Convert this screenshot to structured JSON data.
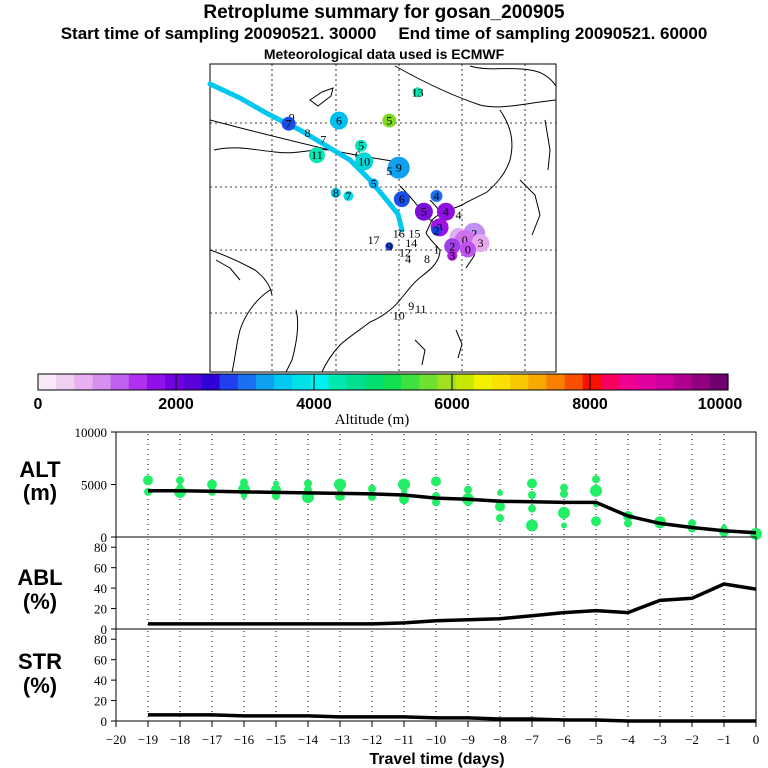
{
  "header": {
    "title": "Retroplume summary for gosan_200905",
    "start_label": "Start time of sampling 20090521. 30000",
    "end_label": "End time of sampling 20090521. 60000",
    "met_label": "Meteorological data used is ECMWF"
  },
  "colors": {
    "trajectory": "#00c8f0",
    "plume_green": "#22ee66",
    "line": "#000000"
  },
  "map": {
    "markers": [
      {
        "label": "9",
        "lon": 73.0,
        "lat": 55.5,
        "size": 0,
        "color": "none"
      },
      {
        "label": "7",
        "lon": 72.5,
        "lat": 54.5,
        "size": 7,
        "color": "#1a4de8"
      },
      {
        "label": "8",
        "lon": 75.5,
        "lat": 53.0,
        "size": 0,
        "color": "none"
      },
      {
        "label": "7",
        "lon": 78.0,
        "lat": 52.0,
        "size": 0,
        "color": "none"
      },
      {
        "label": "6",
        "lon": 80.5,
        "lat": 55.0,
        "size": 9,
        "color": "#00c0f0"
      },
      {
        "label": "5",
        "lon": 88.5,
        "lat": 55.0,
        "size": 7,
        "color": "#80d820"
      },
      {
        "label": "5",
        "lon": 84.0,
        "lat": 51.0,
        "size": 6,
        "color": "#00e8c0"
      },
      {
        "label": "11",
        "lon": 77.0,
        "lat": 49.5,
        "size": 8,
        "color": "#00e8b0"
      },
      {
        "label": "6",
        "lon": 83.5,
        "lat": 49.5,
        "size": 0,
        "color": "none"
      },
      {
        "label": "10",
        "lon": 84.5,
        "lat": 48.5,
        "size": 9,
        "color": "#00d8d8"
      },
      {
        "label": "9",
        "lon": 90.0,
        "lat": 47.5,
        "size": 11,
        "color": "#10a0f0"
      },
      {
        "label": "5",
        "lon": 88.5,
        "lat": 47.0,
        "size": 0,
        "color": "none"
      },
      {
        "label": "5",
        "lon": 86.0,
        "lat": 45.0,
        "size": 5,
        "color": "#00b0f0"
      },
      {
        "label": "4",
        "lon": 96.0,
        "lat": 43.0,
        "size": 6,
        "color": "#1a70f0"
      },
      {
        "label": "8",
        "lon": 80.0,
        "lat": 43.5,
        "size": 5,
        "color": "#00c8f0"
      },
      {
        "label": "7",
        "lon": 82.0,
        "lat": 43.0,
        "size": 5,
        "color": "#00d8e8"
      },
      {
        "label": "6",
        "lon": 90.5,
        "lat": 42.5,
        "size": 8,
        "color": "#1a50e8"
      },
      {
        "label": "5",
        "lon": 94.0,
        "lat": 40.5,
        "size": 9,
        "color": "#7a10d8"
      },
      {
        "label": "4",
        "lon": 97.5,
        "lat": 40.5,
        "size": 9,
        "color": "#9010e0"
      },
      {
        "label": "4",
        "lon": 99.5,
        "lat": 40.0,
        "size": 0,
        "color": "none"
      },
      {
        "label": "3",
        "lon": 96.5,
        "lat": 38.0,
        "size": 9,
        "color": "#a010e8"
      },
      {
        "label": "2",
        "lon": 96.0,
        "lat": 37.5,
        "size": 5,
        "color": "#1a40e8"
      },
      {
        "label": "1",
        "lon": 99.5,
        "lat": 36.5,
        "size": 9,
        "color": "#e0b0f0"
      },
      {
        "label": "2",
        "lon": 102.0,
        "lat": 37.0,
        "size": 11,
        "color": "#c090f0"
      },
      {
        "label": "0",
        "lon": 100.5,
        "lat": 36.0,
        "size": 10,
        "color": "#d070f0"
      },
      {
        "label": "3",
        "lon": 103.0,
        "lat": 35.5,
        "size": 9,
        "color": "#e8a8f0"
      },
      {
        "label": "2",
        "lon": 98.5,
        "lat": 35.0,
        "size": 8,
        "color": "#a040e8"
      },
      {
        "label": "0",
        "lon": 101.0,
        "lat": 34.5,
        "size": 8,
        "color": "#c050f0"
      },
      {
        "label": "1",
        "lon": 96.0,
        "lat": 34.5,
        "size": 0,
        "color": "none"
      },
      {
        "label": "3",
        "lon": 98.5,
        "lat": 33.5,
        "size": 5,
        "color": "#b020e0"
      },
      {
        "label": "17",
        "lon": 86.0,
        "lat": 36.0,
        "size": 0,
        "color": "none"
      },
      {
        "label": "16",
        "lon": 90.0,
        "lat": 37.0,
        "size": 0,
        "color": "none"
      },
      {
        "label": "15",
        "lon": 92.5,
        "lat": 37.0,
        "size": 0,
        "color": "none"
      },
      {
        "label": "9",
        "lon": 88.5,
        "lat": 35.0,
        "size": 4,
        "color": "#1a40e8"
      },
      {
        "label": "14",
        "lon": 92.0,
        "lat": 35.5,
        "size": 0,
        "color": "none"
      },
      {
        "label": "12",
        "lon": 91.0,
        "lat": 34.0,
        "size": 0,
        "color": "none"
      },
      {
        "label": "4",
        "lon": 91.5,
        "lat": 33.0,
        "size": 0,
        "color": "none"
      },
      {
        "label": "8",
        "lon": 94.5,
        "lat": 33.0,
        "size": 0,
        "color": "none"
      },
      {
        "label": "9",
        "lon": 92.0,
        "lat": 25.5,
        "size": 0,
        "color": "none"
      },
      {
        "label": "11",
        "lon": 93.5,
        "lat": 25.0,
        "size": 0,
        "color": "none"
      },
      {
        "label": "10",
        "lon": 90.0,
        "lat": 24.0,
        "size": 0,
        "color": "none"
      },
      {
        "label": "13",
        "lon": 93.0,
        "lat": 59.5,
        "size": 5,
        "color": "#00e8b0"
      }
    ]
  },
  "colorbar": {
    "stops": [
      "#f8e8f8",
      "#f0d0f0",
      "#e8b0f0",
      "#d890f0",
      "#c060f0",
      "#b030f0",
      "#9010e8",
      "#7000e0",
      "#5a00d8",
      "#3000d8",
      "#2040f0",
      "#1a70f0",
      "#10a0f0",
      "#00c8f0",
      "#00e0e8",
      "#00f0f0",
      "#00e8b0",
      "#00e090",
      "#00e070",
      "#10e050",
      "#40e040",
      "#70e030",
      "#a0e020",
      "#c8e800",
      "#f0f000",
      "#f8e000",
      "#f8c800",
      "#f8a800",
      "#f88000",
      "#f85000",
      "#f81000",
      "#f80060",
      "#f00090",
      "#e000a0",
      "#d000a0",
      "#b00090",
      "#900080",
      "#700070"
    ],
    "tick_labels": [
      "0",
      "2000",
      "4000",
      "6000",
      "8000",
      "10000"
    ],
    "label": "Altitude (m)"
  },
  "chart_data": [
    {
      "type": "line",
      "panel": "ALT",
      "ylabel_line1": "ALT",
      "ylabel_line2": "(m)",
      "ylim": [
        0,
        10000
      ],
      "yticks": [
        "0",
        "5000",
        "10000"
      ],
      "x": [
        -19,
        -18,
        -17,
        -16,
        -15,
        -14,
        -13,
        -12,
        -11,
        -10,
        -9,
        -8,
        -7,
        -6,
        -5,
        -4,
        -3,
        -2,
        -1,
        0
      ],
      "values": [
        4400,
        4400,
        4350,
        4300,
        4250,
        4200,
        4150,
        4100,
        4000,
        3700,
        3600,
        3400,
        3350,
        3300,
        3300,
        2000,
        1300,
        900,
        600,
        400
      ],
      "scatter": [
        [
          -19,
          4300
        ],
        [
          -19,
          5400
        ],
        [
          -18,
          4800
        ],
        [
          -18,
          4300
        ],
        [
          -18,
          5400
        ],
        [
          -17,
          4300
        ],
        [
          -17,
          5000
        ],
        [
          -16,
          3900
        ],
        [
          -16,
          4500
        ],
        [
          -16,
          5200
        ],
        [
          -15,
          3900
        ],
        [
          -15,
          4500
        ],
        [
          -15,
          5100
        ],
        [
          -14,
          3800
        ],
        [
          -14,
          4500
        ],
        [
          -14,
          5100
        ],
        [
          -13,
          3900
        ],
        [
          -13,
          4500
        ],
        [
          -13,
          5000
        ],
        [
          -12,
          3800
        ],
        [
          -12,
          4600
        ],
        [
          -11,
          3600
        ],
        [
          -11,
          4300
        ],
        [
          -11,
          5000
        ],
        [
          -10,
          3300
        ],
        [
          -10,
          3900
        ],
        [
          -10,
          5300
        ],
        [
          -9,
          3200
        ],
        [
          -9,
          3600
        ],
        [
          -9,
          4500
        ],
        [
          -8,
          1800
        ],
        [
          -8,
          2900
        ],
        [
          -8,
          4200
        ],
        [
          -7,
          1100
        ],
        [
          -7,
          2700
        ],
        [
          -7,
          4000
        ],
        [
          -7,
          5100
        ],
        [
          -6,
          1100
        ],
        [
          -6,
          2300
        ],
        [
          -6,
          4100
        ],
        [
          -6,
          4700
        ],
        [
          -5,
          1500
        ],
        [
          -5,
          3100
        ],
        [
          -5,
          4400
        ],
        [
          -5,
          5500
        ],
        [
          -4,
          1300
        ],
        [
          -4,
          2000
        ],
        [
          -3,
          1100
        ],
        [
          -3,
          1400
        ],
        [
          -2,
          800
        ],
        [
          -2,
          1300
        ],
        [
          -1,
          500
        ],
        [
          -1,
          900
        ],
        [
          0,
          300
        ]
      ]
    },
    {
      "type": "line",
      "panel": "ABL",
      "ylabel_line1": "ABL",
      "ylabel_line2": "(%)",
      "ylim": [
        0,
        90
      ],
      "yticks": [
        "0",
        "20",
        "40",
        "60",
        "80"
      ],
      "x": [
        -19,
        -18,
        -17,
        -16,
        -15,
        -14,
        -13,
        -12,
        -11,
        -10,
        -9,
        -8,
        -7,
        -6,
        -5,
        -4,
        -3,
        -2,
        -1,
        0
      ],
      "values": [
        5,
        5,
        5,
        5,
        5,
        5,
        5,
        5,
        6,
        8,
        9,
        10,
        13,
        16,
        18,
        16,
        28,
        30,
        44,
        39
      ]
    },
    {
      "type": "line",
      "panel": "STR",
      "ylabel_line1": "STR",
      "ylabel_line2": "(%)",
      "ylim": [
        0,
        90
      ],
      "yticks": [
        "0",
        "20",
        "40",
        "60",
        "80"
      ],
      "x": [
        -19,
        -18,
        -17,
        -16,
        -15,
        -14,
        -13,
        -12,
        -11,
        -10,
        -9,
        -8,
        -7,
        -6,
        -5,
        -4,
        -3,
        -2,
        -1,
        0
      ],
      "values": [
        6,
        6,
        6,
        5,
        5,
        5,
        4,
        4,
        4,
        3,
        3,
        2,
        2,
        1,
        1,
        0,
        0,
        0,
        0,
        0
      ],
      "xlabel": "Travel time (days)",
      "xticks": [
        "−20",
        "−19",
        "−18",
        "−17",
        "−16",
        "−15",
        "−14",
        "−13",
        "−12",
        "−11",
        "−10",
        "−9",
        "−8",
        "−7",
        "−6",
        "−5",
        "−4",
        "−3",
        "−2",
        "−1",
        "0"
      ]
    }
  ]
}
